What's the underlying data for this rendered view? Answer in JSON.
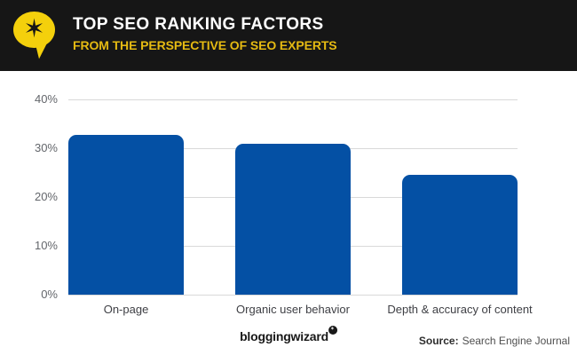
{
  "header": {
    "title": "TOP SEO RANKING FACTORS",
    "subtitle": "FROM THE PERSPECTIVE OF SEO EXPERTS",
    "logo_icon": "speech-bubble-with-star",
    "colors": {
      "background": "#161616",
      "title": "#ffffff",
      "subtitle": "#e5ba12",
      "logo_yellow": "#f4d00c"
    }
  },
  "chart_data": {
    "type": "bar",
    "categories": [
      "On-page",
      "Organic user behavior",
      "Depth & accuracy of content"
    ],
    "values": [
      32.8,
      31,
      24.5
    ],
    "value_unit": "%",
    "y_ticks": [
      "40%",
      "30%",
      "20%",
      "10%",
      "0%"
    ],
    "ylim": [
      0,
      40
    ],
    "grid": "horizontal",
    "legend": "none",
    "bar_color": "#0450a4",
    "gridline_color": "#d9d9d9",
    "title": "",
    "xlabel": "",
    "ylabel": ""
  },
  "footer": {
    "brand": "bloggingwizard",
    "brand_icon": "speech-bubble-with-star",
    "source_label": "Source:",
    "source_value": "Search Engine Journal"
  }
}
